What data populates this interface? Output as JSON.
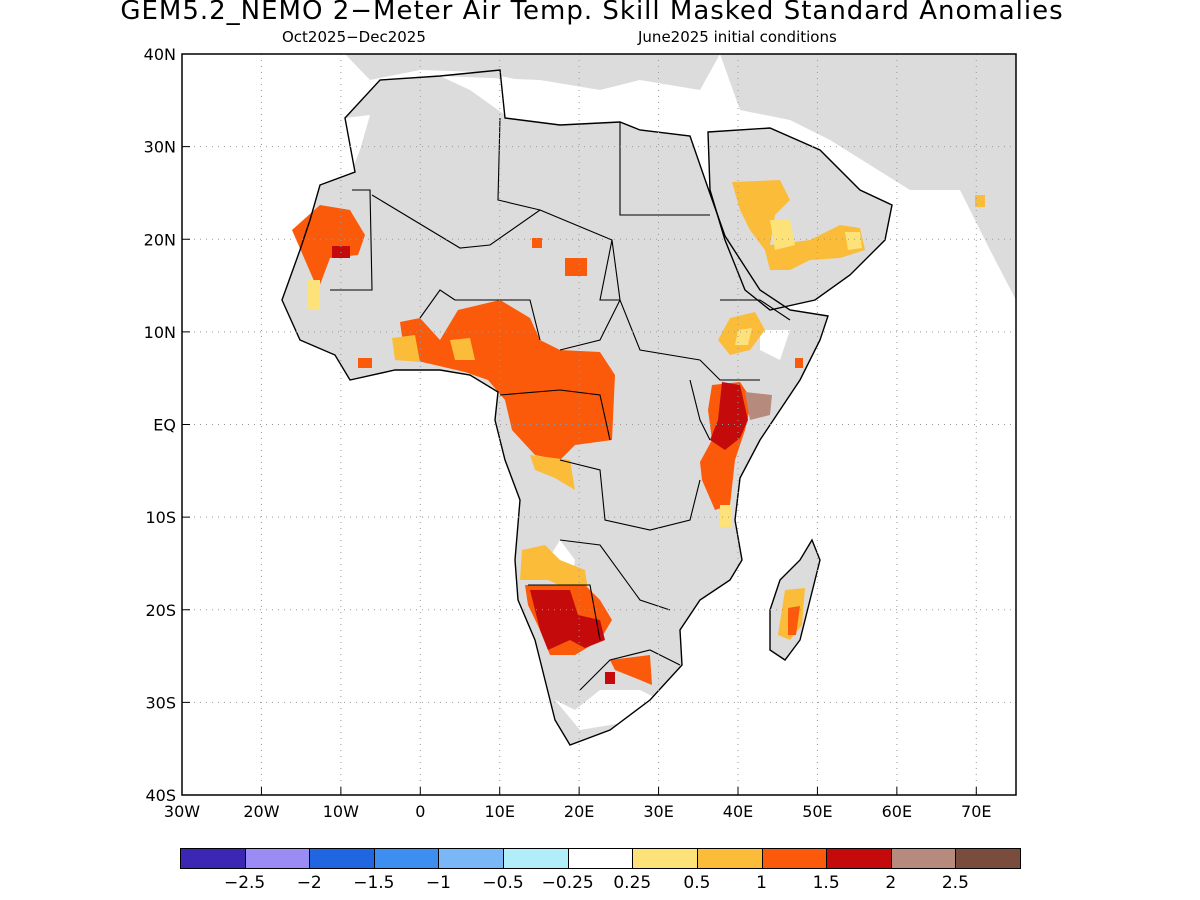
{
  "title": "GEM5.2_NEMO 2−Meter Air Temp. Skill Masked Standard Anomalies",
  "subtitle_left": "Oct2025−Dec2025",
  "subtitle_right": "June2025 initial conditions",
  "map": {
    "extent": {
      "lon": [
        -30,
        75
      ],
      "lat": [
        -40,
        40
      ]
    },
    "land_color": "#dcdcdc",
    "ocean_color": "#ffffff",
    "x_ticks": [
      "30W",
      "20W",
      "10W",
      "0",
      "10E",
      "20E",
      "30E",
      "40E",
      "50E",
      "60E",
      "70E"
    ],
    "y_ticks": [
      "40N",
      "30N",
      "20N",
      "10N",
      "EQ",
      "10S",
      "20S",
      "30S",
      "40S"
    ],
    "gridlines": "dotted"
  },
  "colorbar": {
    "colors": [
      "#3a27b4",
      "#9a8bf5",
      "#1f66e0",
      "#3c8ff0",
      "#79b7f7",
      "#b2eefa",
      "#ffffff",
      "#fde27a",
      "#fbbc3a",
      "#fa5a0a",
      "#c40a0a",
      "#b78a7e",
      "#7a4c3e"
    ],
    "labels": [
      "−2.5",
      "−2",
      "−1.5",
      "−1",
      "−0.5",
      "−0.25",
      "0.25",
      "0.5",
      "1",
      "1.5",
      "2",
      "2.5"
    ]
  }
}
